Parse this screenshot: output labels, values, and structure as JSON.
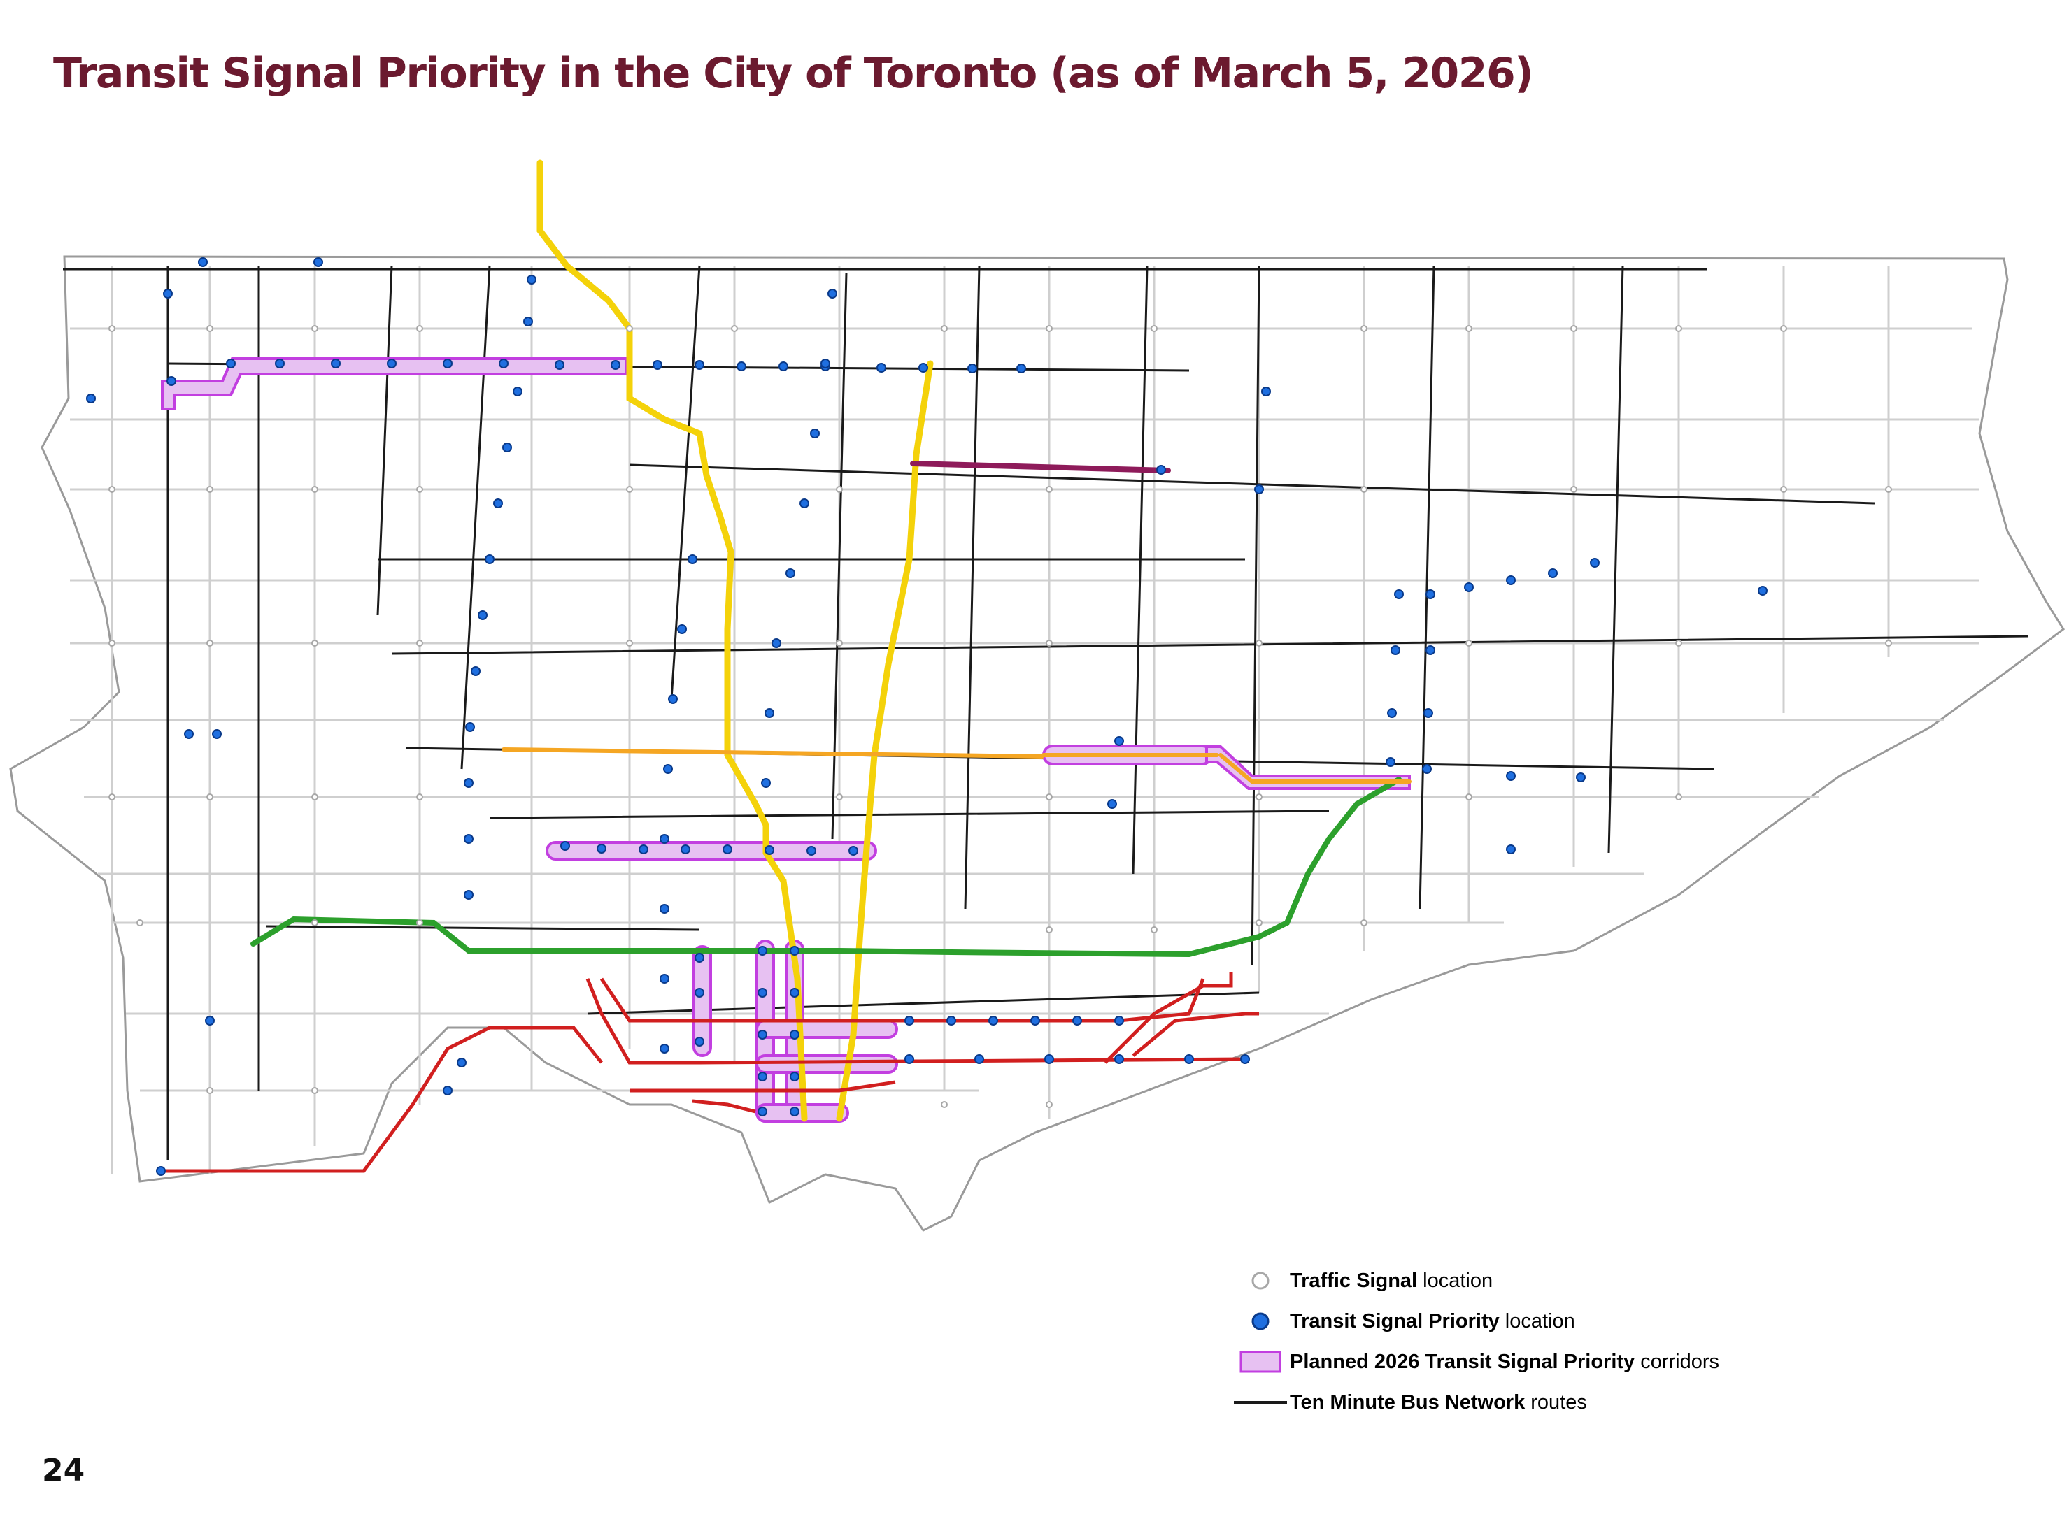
{
  "title": "Transit Signal Priority in the City of Toronto (as of March 5, 2026)",
  "page_number": "24",
  "legend": {
    "traffic_signal": {
      "bold": "Traffic Signal",
      "rest": " location"
    },
    "tsp_location": {
      "bold": "Transit Signal Priority",
      "rest": " location"
    },
    "planned_corridors": {
      "bold": "Planned 2026 Transit Signal Priority",
      "rest": " corridors"
    },
    "ten_minute_bus": {
      "bold": "Ten Minute Bus Network",
      "rest": " routes"
    }
  },
  "colors": {
    "title": "#6b1a2f",
    "city_boundary": "#9a9a9a",
    "street_grid": "#cfcfcf",
    "ten_minute_bus_network": "#1a1a1a",
    "traffic_signal_stroke": "#a8a8a8",
    "tsp_location_fill": "#1f6fe0",
    "planned_corridor_outline": "#c23fe0",
    "planned_corridor_fill": "#e7c1f2",
    "subway_line_1": "#f4d20a",
    "subway_line_2": "#2ca02c",
    "line_5_eglinton": "#f5a623",
    "line_6_finch_west": "#8e1b5a",
    "streetcar_network": "#d11f1f"
  }
}
